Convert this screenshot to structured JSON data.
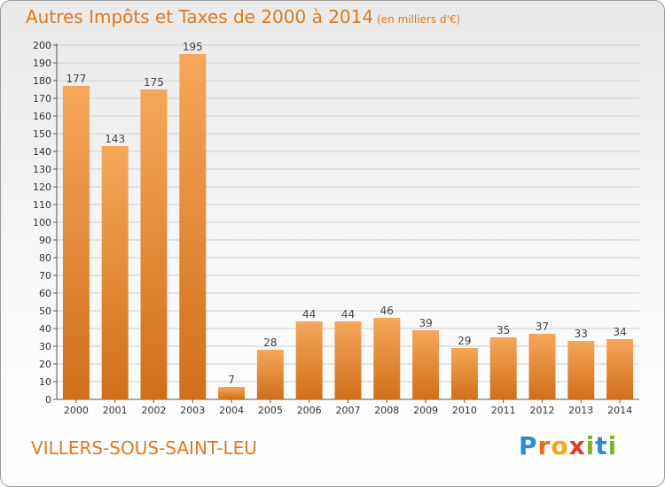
{
  "header": {
    "title": "Autres Impôts et Taxes de 2000 à 2014",
    "unit": "(en milliers d'€)"
  },
  "footer": {
    "commune": "VILLERS-SOUS-SAINT-LEU",
    "logo": [
      "P",
      "r",
      "o",
      "x",
      "i",
      "t",
      "i"
    ]
  },
  "colors": {
    "title": "#e07a1e",
    "bar_top": "#f6a75a",
    "bar_bottom": "#d06f1a",
    "grid": "#cfcfcf"
  },
  "chart_data": {
    "type": "bar",
    "title": "Autres Impôts et Taxes de 2000 à 2014",
    "subtitle": "(en milliers d'€)",
    "xlabel": "",
    "ylabel": "",
    "categories": [
      "2000",
      "2001",
      "2002",
      "2003",
      "2004",
      "2005",
      "2006",
      "2007",
      "2008",
      "2009",
      "2010",
      "2011",
      "2012",
      "2013",
      "2014"
    ],
    "values": [
      177,
      143,
      175,
      195,
      7,
      28,
      44,
      44,
      46,
      39,
      29,
      35,
      37,
      33,
      34
    ],
    "ylim": [
      0,
      200
    ],
    "yticks": [
      0,
      10,
      20,
      30,
      40,
      50,
      60,
      70,
      80,
      90,
      100,
      110,
      120,
      130,
      140,
      150,
      160,
      170,
      180,
      190,
      200
    ],
    "grid": true,
    "data_labels": true,
    "legend": "none"
  }
}
